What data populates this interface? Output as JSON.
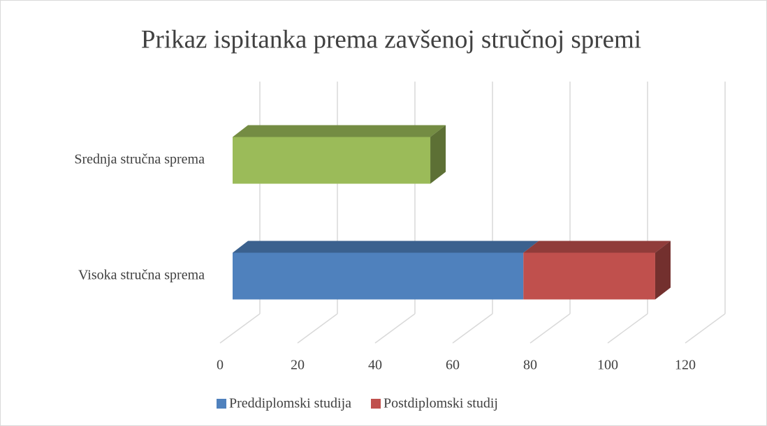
{
  "chart_data": {
    "type": "bar3d_stacked_horizontal",
    "title": "Prikaz ispitanka prema zavšenoj stručnoj spremi",
    "categories": [
      "Srednja stručna sprema",
      "Visoka stručna sprema"
    ],
    "series": [
      {
        "name": "Preddiplomski studija",
        "color": "#4f81bd",
        "point_colors": [
          "#9bbb59",
          "#4f81bd"
        ],
        "values": [
          51,
          75
        ]
      },
      {
        "name": "Postdiplomski studij",
        "color": "#c0504d",
        "values": [
          null,
          34
        ]
      }
    ],
    "xlim": [
      0,
      120
    ],
    "xticks": [
      0,
      20,
      40,
      60,
      80,
      100,
      120
    ],
    "grid": true,
    "legend": "bottom"
  }
}
